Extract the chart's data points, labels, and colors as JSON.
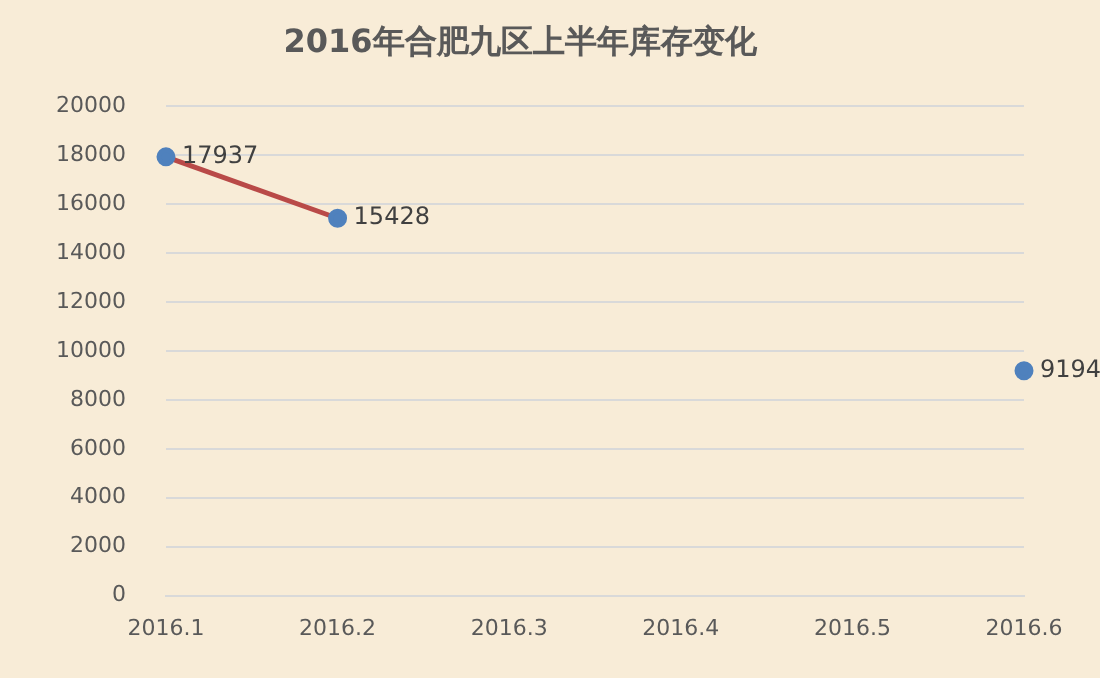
{
  "chart_data": {
    "type": "line",
    "title": "2016年合肥九区上半年库存变化",
    "categories": [
      "2016.1",
      "2016.2",
      "2016.3",
      "2016.4",
      "2016.5",
      "2016.6"
    ],
    "series": [
      {
        "color": "#b94a48",
        "colors": [
          "#4f81bd",
          "#4f81bd",
          null,
          null,
          null,
          "#4f81bd"
        ],
        "values": [
          17937,
          15428,
          null,
          null,
          null,
          9194
        ],
        "value_labels": [
          "17937",
          "15428",
          null,
          null,
          null,
          "9194"
        ]
      }
    ],
    "marker": "circle",
    "ylim": [
      0,
      20000
    ],
    "yticks": [
      0,
      2000,
      4000,
      6000,
      8000,
      10000,
      12000,
      14000,
      16000,
      18000,
      20000
    ],
    "grid": "y",
    "legend": false
  }
}
